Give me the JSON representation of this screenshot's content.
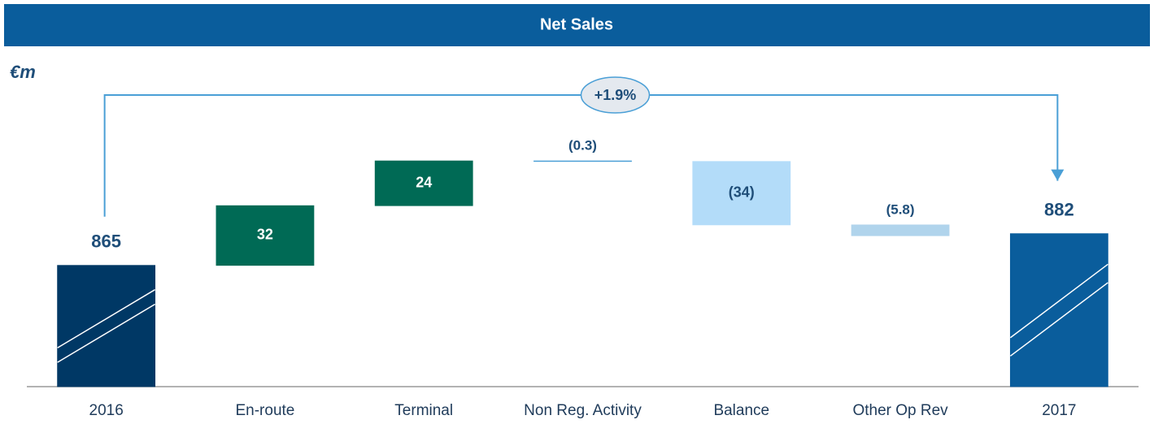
{
  "chart_data": {
    "type": "waterfall",
    "title": "Net Sales",
    "unit_label": "€m",
    "annotation": "+1.9%",
    "categories": [
      "2016",
      "En-route",
      "Terminal",
      "Non Reg. Activity",
      "Balance",
      "Other Op Rev",
      "2017"
    ],
    "values": [
      865,
      32,
      24,
      -0.3,
      -34,
      -5.8,
      882
    ],
    "value_labels": [
      "865",
      "32",
      "24",
      "(0.3)",
      "(34)",
      "(5.8)",
      "882"
    ],
    "colors": [
      "#003865",
      "#006a55",
      "#006a55",
      "#4a9fd6",
      "#b3dcf9",
      "#b0d4ec",
      "#0a5d9c"
    ],
    "ylim": [
      800,
      955
    ]
  }
}
